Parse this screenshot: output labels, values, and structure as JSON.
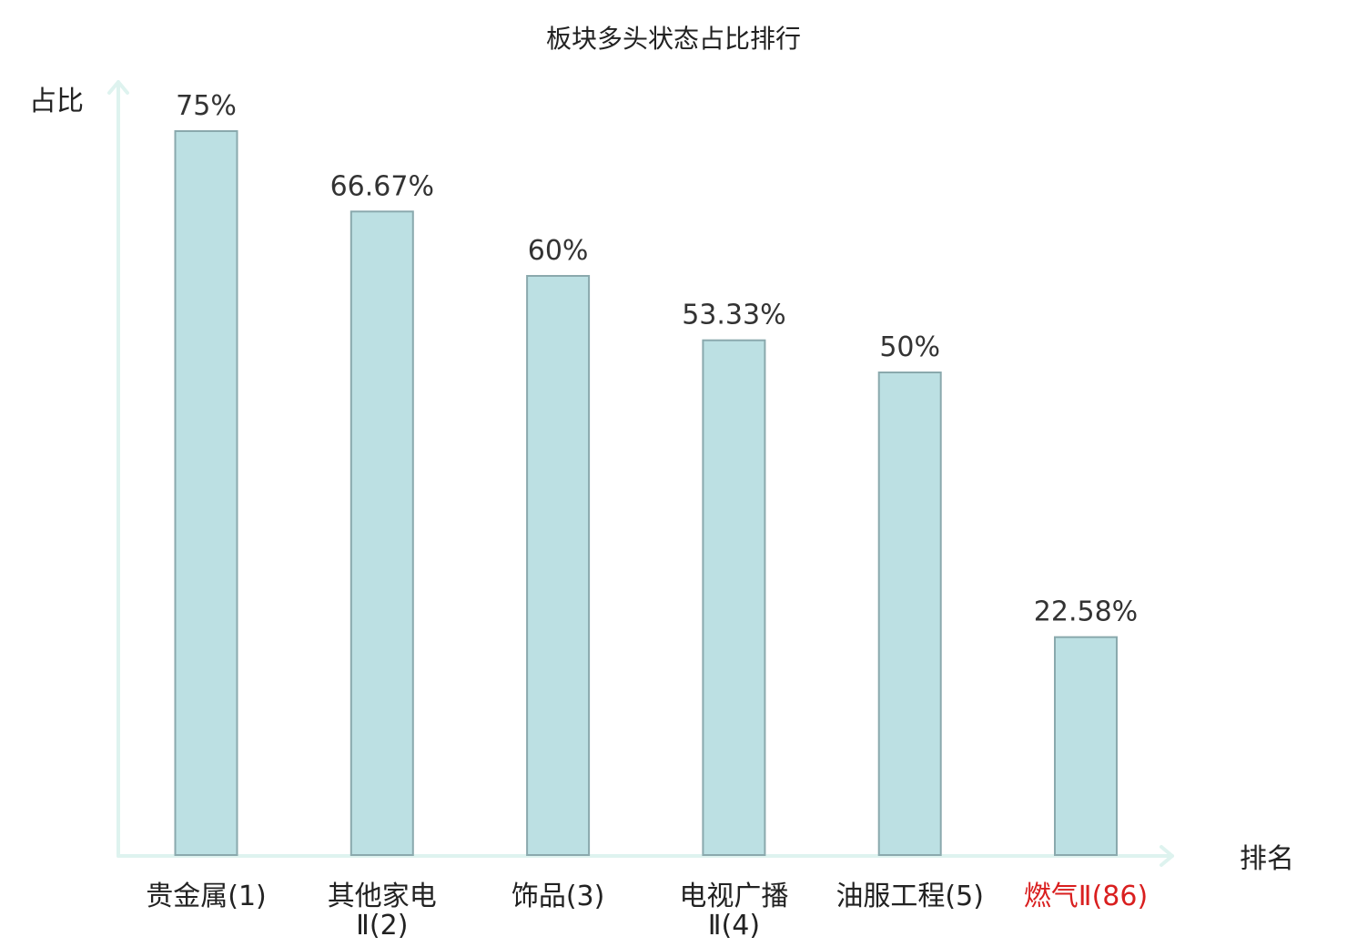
{
  "chart_data": {
    "type": "bar",
    "title": "板块多头状态占比排行",
    "ylabel": "占比",
    "xlabel": "排名",
    "categories": [
      [
        "贵金属(1)"
      ],
      [
        "其他家电",
        "Ⅱ(2)"
      ],
      [
        "饰品(3)"
      ],
      [
        "电视广播",
        "Ⅱ(4)"
      ],
      [
        "油服工程(5)"
      ],
      [
        "燃气Ⅱ(86)"
      ]
    ],
    "values": [
      75,
      66.67,
      60,
      53.33,
      50,
      22.58
    ],
    "value_labels": [
      "75%",
      "66.67%",
      "60%",
      "53.33%",
      "50%",
      "22.58%"
    ],
    "highlight_index": 5,
    "colors": {
      "bar_fill": "#bce0e3",
      "bar_stroke": "#8aa9ad",
      "axis": "#def3ef",
      "highlight_text": "#d91f1f"
    },
    "ylim": [
      0,
      75
    ],
    "grid": false,
    "legend": "none"
  }
}
